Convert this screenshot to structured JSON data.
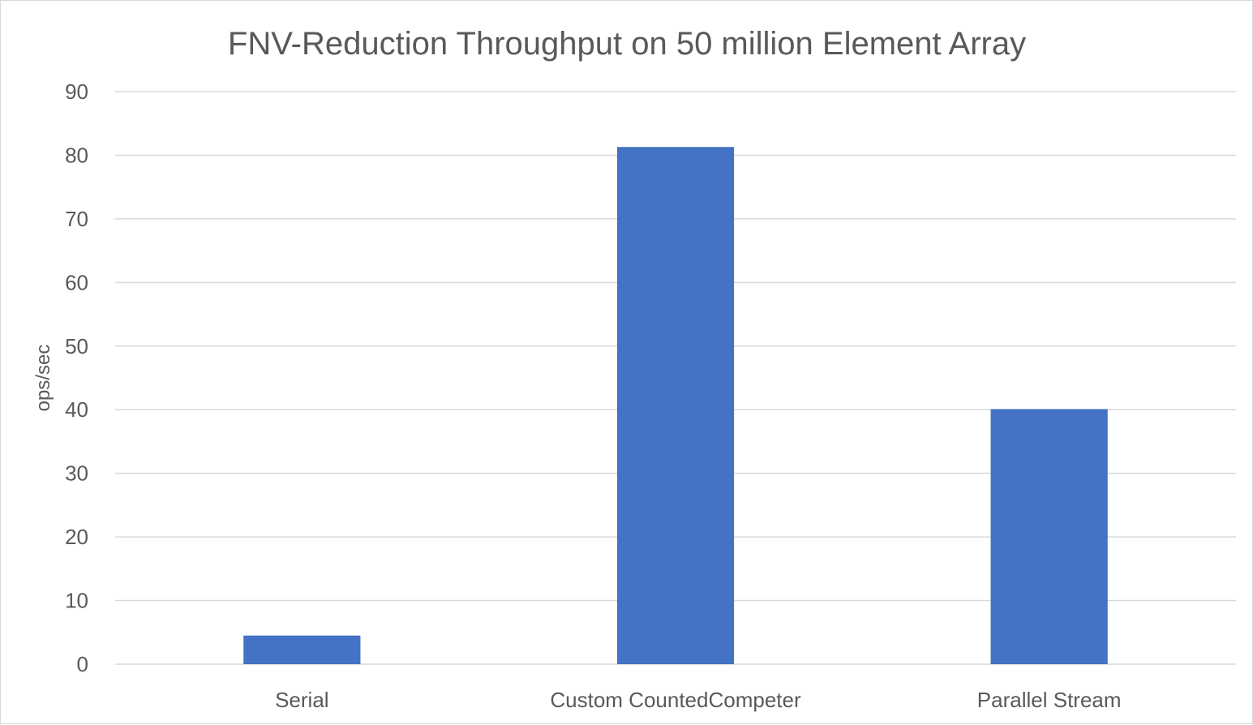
{
  "chart_data": {
    "type": "bar",
    "title": "FNV-Reduction Throughput on 50 million Element Array",
    "xlabel": "",
    "ylabel": "ops/sec",
    "categories": [
      "Serial",
      "Custom CountedCompeter",
      "Parallel Stream"
    ],
    "series": [
      {
        "values": [
          4.5,
          81.3,
          40.1
        ]
      }
    ],
    "ylim": [
      0,
      90
    ],
    "yticks": [
      0,
      10,
      20,
      30,
      40,
      50,
      60,
      70,
      80,
      90
    ],
    "grid": true,
    "legend": "none",
    "colors": {
      "bar": "#4472c4",
      "grid": "#d9d9d9",
      "text": "#595959"
    }
  }
}
